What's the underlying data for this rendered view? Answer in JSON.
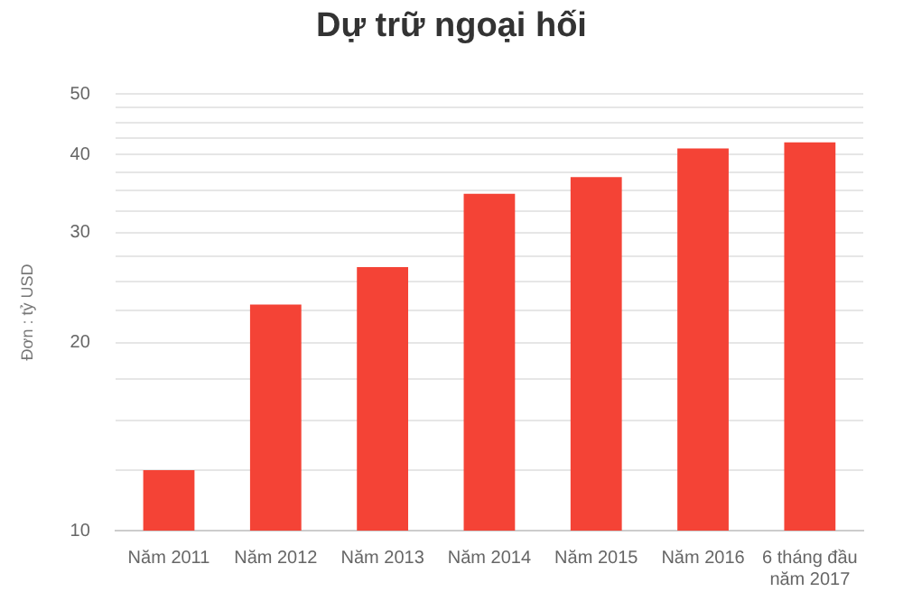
{
  "chart_data": {
    "type": "bar",
    "title": "Dự trữ ngoại hối",
    "ylabel": "Đơn : tỷ USD",
    "categories": [
      "Năm 2011",
      "Năm 2012",
      "Năm 2013",
      "Năm 2014",
      "Năm 2015",
      "Năm 2016",
      "6 tháng đầu năm 2017"
    ],
    "values": [
      12.5,
      23.0,
      26.4,
      34.6,
      36.8,
      40.9,
      41.8
    ],
    "color": "#f44336",
    "log": "y",
    "ylim": [
      10,
      50
    ],
    "yticks": [
      10,
      {
        "value": 12.5,
        "label": null
      },
      {
        "value": 15,
        "label": null
      },
      {
        "value": 17.5,
        "label": null
      },
      20,
      {
        "value": 22.5,
        "label": null
      },
      {
        "value": 25,
        "label": null
      },
      {
        "value": 27.5,
        "label": null
      },
      30,
      {
        "value": 32.5,
        "label": null
      },
      {
        "value": 35,
        "label": null
      },
      {
        "value": 37.5,
        "label": null
      },
      40,
      {
        "value": 42.5,
        "label": null
      },
      {
        "value": 45,
        "label": null
      },
      {
        "value": 47.5,
        "label": null
      },
      50
    ],
    "grid": "y",
    "legend": false
  }
}
